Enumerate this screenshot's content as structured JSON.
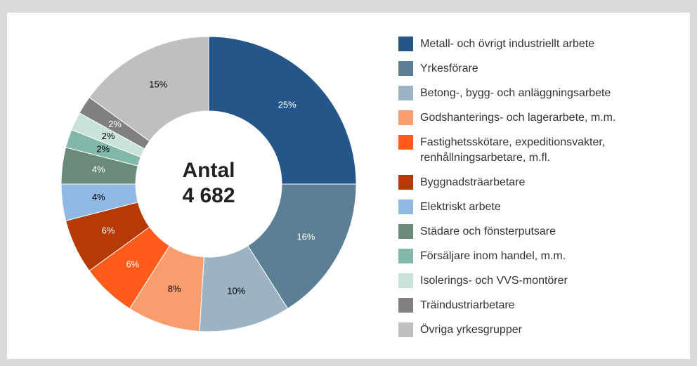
{
  "chart_data": {
    "type": "donut",
    "center_title": "Antal",
    "center_value": "4 682",
    "categories": [
      "Metall- och övrigt industriellt arbete",
      "Yrkesförare",
      "Betong-, bygg- och anläggningsarbete",
      "Godshanterings- och lagerarbete, m.m.",
      "Fastighetsskötare, expeditionsvakter, renhållningsarbetare, m.fl.",
      "Byggnadsträarbetare",
      "Elektriskt arbete",
      "Städare och fönsterputsare",
      "Försäljare inom handel, m.m.",
      "Isolerings- och VVS-montörer",
      "Träindustriarbetare",
      "Övriga yrkesgrupper"
    ],
    "values": [
      25,
      16,
      10,
      8,
      6,
      6,
      4,
      4,
      2,
      2,
      2,
      15
    ],
    "value_labels": [
      "25%",
      "16%",
      "10%",
      "8%",
      "6%",
      "6%",
      "4%",
      "4%",
      "2%",
      "2%",
      "2%",
      "15%"
    ],
    "colors": [
      "#24568a",
      "#5b7f94",
      "#9bb3c2",
      "#f99d6e",
      "#ff5b1a",
      "#b53a05",
      "#8fb8e2",
      "#6a8a7a",
      "#82b8aa",
      "#c9e2da",
      "#808080",
      "#bfbfbf"
    ],
    "label_colors": [
      "#ffffff",
      "#ffffff",
      "#000000",
      "#000000",
      "#ffffff",
      "#ffffff",
      "#000000",
      "#ffffff",
      "#000000",
      "#000000",
      "#ffffff",
      "#000000"
    ],
    "legend": "right"
  }
}
